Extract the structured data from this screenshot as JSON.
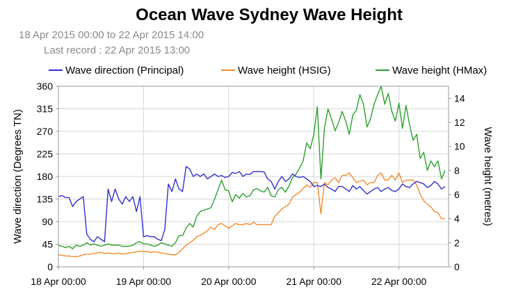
{
  "chart_data": {
    "type": "line",
    "title": "Ocean Wave Sydney Wave Height",
    "subtitle_range": "18 Apr 2015 00:00 to 22 Apr 2015 14:00",
    "subtitle_last": "Last record : 22 Apr 2015 13:00",
    "ylabel_left": "Wave direction (Degrees TN)",
    "ylabel_right": "Wave height (metres)",
    "ylim_left": [
      0,
      360
    ],
    "ylim_right": [
      0,
      15
    ],
    "yticks_left": [
      "0",
      "45",
      "90",
      "135",
      "180",
      "225",
      "270",
      "315",
      "360"
    ],
    "yticks_right": [
      "0",
      "2",
      "4",
      "6",
      "8",
      "10",
      "12",
      "14"
    ],
    "xlim_hours": [
      0,
      110
    ],
    "xticks": [
      {
        "hour": 0,
        "label": "18 Apr 00:00"
      },
      {
        "hour": 24,
        "label": "19 Apr 00:00"
      },
      {
        "hour": 48,
        "label": "20 Apr 00:00"
      },
      {
        "hour": 72,
        "label": "21 Apr 00:00"
      },
      {
        "hour": 96,
        "label": "22 Apr 00:00"
      }
    ],
    "grid": true,
    "legend_position": "top",
    "x_hours": [
      0,
      1,
      2,
      3,
      4,
      5,
      6,
      7,
      8,
      9,
      10,
      11,
      12,
      13,
      14,
      15,
      16,
      17,
      18,
      19,
      20,
      21,
      22,
      23,
      24,
      25,
      26,
      27,
      28,
      29,
      30,
      31,
      32,
      33,
      34,
      35,
      36,
      37,
      38,
      39,
      40,
      41,
      42,
      43,
      44,
      45,
      46,
      47,
      48,
      49,
      50,
      51,
      52,
      53,
      54,
      55,
      56,
      57,
      58,
      59,
      60,
      61,
      62,
      63,
      64,
      65,
      66,
      67,
      68,
      69,
      70,
      71,
      72,
      73,
      74,
      75,
      76,
      77,
      78,
      79,
      80,
      81,
      82,
      83,
      84,
      85,
      86,
      87,
      88,
      89,
      90,
      91,
      92,
      93,
      94,
      95,
      96,
      97,
      98,
      99,
      100,
      101,
      102,
      103,
      104,
      105,
      106,
      107,
      108,
      109
    ],
    "series": [
      {
        "name": "Wave direction (Principal)",
        "axis": "left",
        "color": "#2f2fd0",
        "values": [
          140,
          142,
          138,
          138,
          120,
          130,
          135,
          140,
          65,
          55,
          50,
          60,
          55,
          50,
          155,
          130,
          155,
          135,
          125,
          140,
          130,
          140,
          110,
          140,
          60,
          62,
          60,
          60,
          55,
          52,
          75,
          165,
          150,
          175,
          155,
          150,
          200,
          195,
          180,
          185,
          180,
          185,
          175,
          180,
          185,
          180,
          182,
          178,
          180,
          188,
          186,
          190,
          180,
          185,
          184,
          190,
          190,
          190,
          189,
          175,
          170,
          155,
          170,
          180,
          170,
          175,
          185,
          180,
          178,
          180,
          175,
          170,
          160,
          162,
          160,
          165,
          158,
          155,
          150,
          160,
          160,
          155,
          150,
          162,
          155,
          160,
          152,
          145,
          150,
          155,
          158,
          150,
          155,
          158,
          152,
          150,
          155,
          165,
          160,
          158,
          165,
          170,
          168,
          165,
          158,
          162,
          170,
          165,
          155,
          160
        ]
      },
      {
        "name": "Wave height (HSIG)",
        "axis": "right",
        "color": "#f58a2a",
        "values": [
          1.0,
          0.95,
          0.9,
          0.9,
          0.85,
          0.85,
          0.9,
          1.0,
          1.05,
          1.05,
          1.1,
          1.15,
          1.2,
          1.1,
          1.15,
          1.1,
          1.1,
          1.15,
          1.05,
          1.1,
          1.15,
          1.2,
          1.25,
          1.3,
          1.25,
          1.3,
          1.2,
          1.25,
          1.2,
          1.15,
          1.1,
          1.05,
          1.0,
          1.0,
          1.2,
          1.5,
          1.8,
          2.0,
          2.2,
          2.5,
          2.6,
          2.8,
          3.0,
          3.3,
          3.1,
          3.5,
          3.6,
          3.4,
          3.2,
          3.4,
          3.6,
          3.5,
          3.5,
          3.6,
          3.5,
          3.7,
          3.5,
          3.5,
          3.5,
          3.5,
          3.5,
          4.2,
          4.5,
          4.8,
          5.0,
          5.2,
          5.8,
          6.0,
          6.2,
          6.5,
          6.8,
          6.6,
          7.0,
          7.0,
          4.4,
          7.0,
          6.8,
          7.2,
          7.4,
          7.0,
          7.6,
          7.6,
          7.8,
          7.4,
          7.0,
          7.1,
          7.2,
          6.8,
          7.0,
          7.0,
          7.6,
          7.8,
          7.2,
          7.2,
          7.6,
          7.2,
          7.8,
          7.0,
          7.2,
          7.2,
          7.2,
          6.8,
          6.0,
          5.5,
          5.2,
          5.0,
          4.6,
          4.5,
          4.0,
          4.0
        ]
      },
      {
        "name": "Wave height (HMax)",
        "axis": "right",
        "color": "#2ca02c",
        "values": [
          1.8,
          1.7,
          1.6,
          1.7,
          1.5,
          1.8,
          1.7,
          1.8,
          2.0,
          1.8,
          1.9,
          1.8,
          1.7,
          1.8,
          1.9,
          1.8,
          1.8,
          1.8,
          1.7,
          1.7,
          1.7,
          1.8,
          2.0,
          2.1,
          1.9,
          1.9,
          1.8,
          1.7,
          1.8,
          2.0,
          1.9,
          1.8,
          1.7,
          2.0,
          2.6,
          2.6,
          3.2,
          3.6,
          3.3,
          4.2,
          4.6,
          4.7,
          4.8,
          4.9,
          5.6,
          6.4,
          7.2,
          6.4,
          6.3,
          5.4,
          6.0,
          5.7,
          6.1,
          5.8,
          5.9,
          6.4,
          6.5,
          6.3,
          6.2,
          6.6,
          5.9,
          5.8,
          6.4,
          6.6,
          6.2,
          6.7,
          7.4,
          7.7,
          8.2,
          8.8,
          10.3,
          9.8,
          11.0,
          13.3,
          7.3,
          11.5,
          13.1,
          12.3,
          11.3,
          12.0,
          12.9,
          12.1,
          11.0,
          12.6,
          13.0,
          14.3,
          13.5,
          11.6,
          12.3,
          13.5,
          14.3,
          15.0,
          13.5,
          14.4,
          12.9,
          12.1,
          13.6,
          11.5,
          13.4,
          11.8,
          10.5,
          11.0,
          9.0,
          9.5,
          8.0,
          8.8,
          8.3,
          8.8,
          7.3,
          8.0
        ]
      }
    ]
  }
}
